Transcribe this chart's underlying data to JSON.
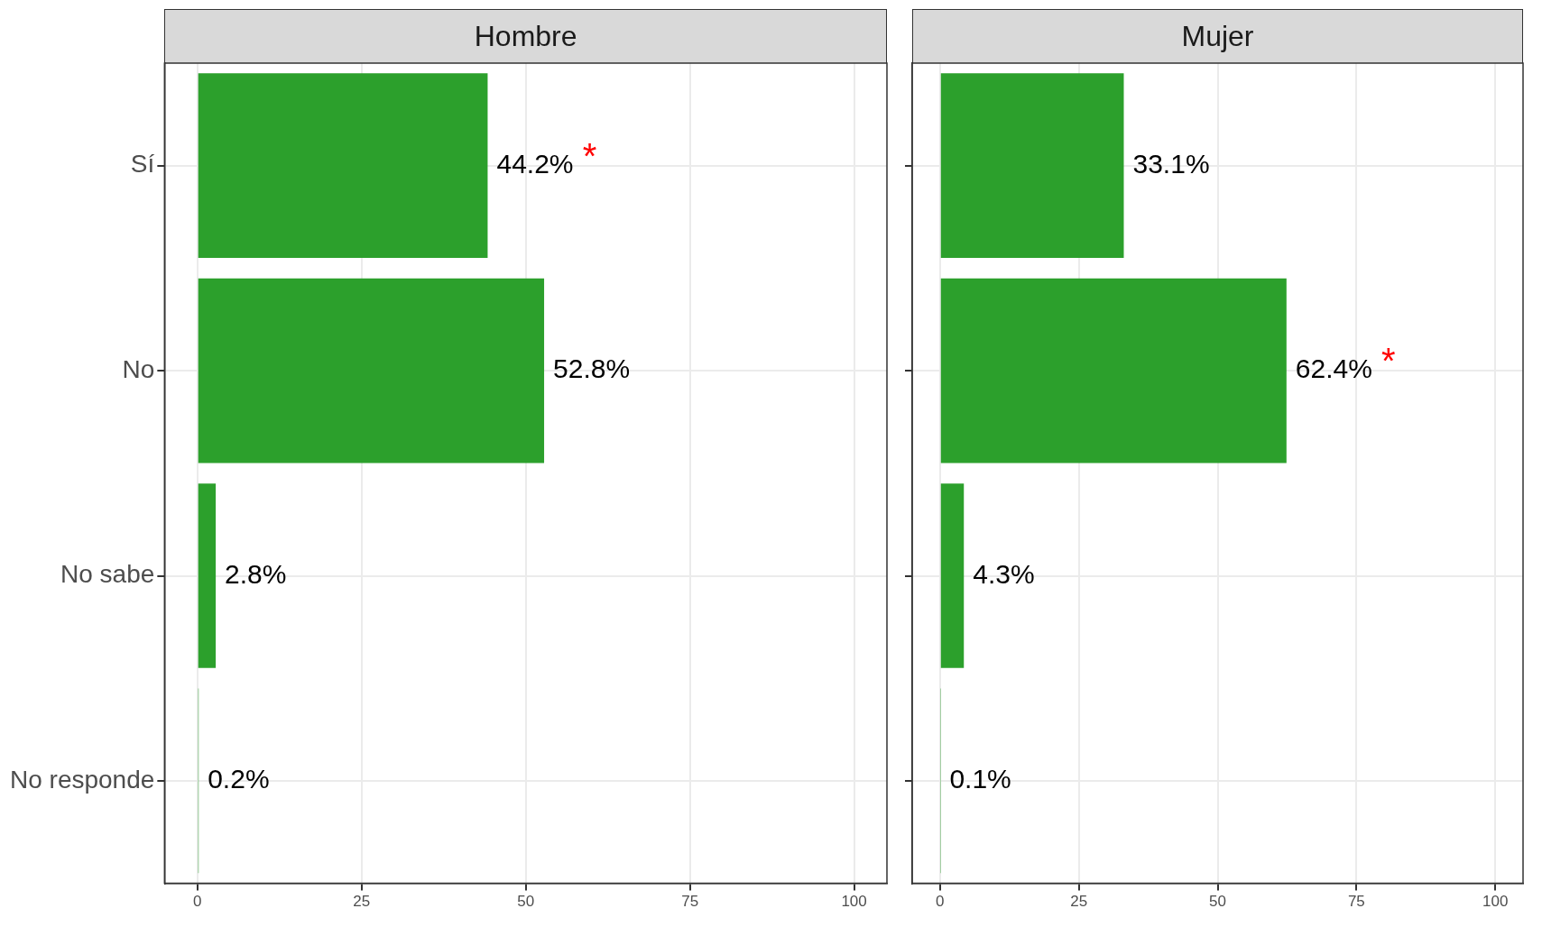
{
  "chart_data": [
    {
      "type": "bar",
      "orientation": "horizontal",
      "title": "Hombre",
      "categories": [
        "Sí",
        "No",
        "No sabe",
        "No responde"
      ],
      "values": [
        44.2,
        52.8,
        2.8,
        0.2
      ],
      "value_labels": [
        "44.2%",
        "52.8%",
        "2.8%",
        "0.2%"
      ],
      "color": "#2ca02c",
      "xlim": [
        -5,
        105
      ],
      "xticks": [
        0,
        25,
        50,
        75,
        100
      ],
      "grid": true,
      "legend": false,
      "annotations": [
        {
          "text": "*",
          "x": 44.2,
          "y": "Sí"
        }
      ]
    },
    {
      "type": "bar",
      "orientation": "horizontal",
      "title": "Mujer",
      "categories": [
        "Sí",
        "No",
        "No sabe",
        "No responde"
      ],
      "values": [
        33.1,
        62.4,
        4.3,
        0.1
      ],
      "value_labels": [
        "33.1%",
        "62.4%",
        "4.3%",
        "0.1%"
      ],
      "color": "#2ca02c",
      "xlim": [
        -5,
        105
      ],
      "xticks": [
        0,
        25,
        50,
        75,
        100
      ],
      "grid": true,
      "legend": false,
      "tick_labels": "x",
      "annotations": [
        {
          "text": "*",
          "x": 62.4,
          "y": "No"
        }
      ]
    }
  ]
}
